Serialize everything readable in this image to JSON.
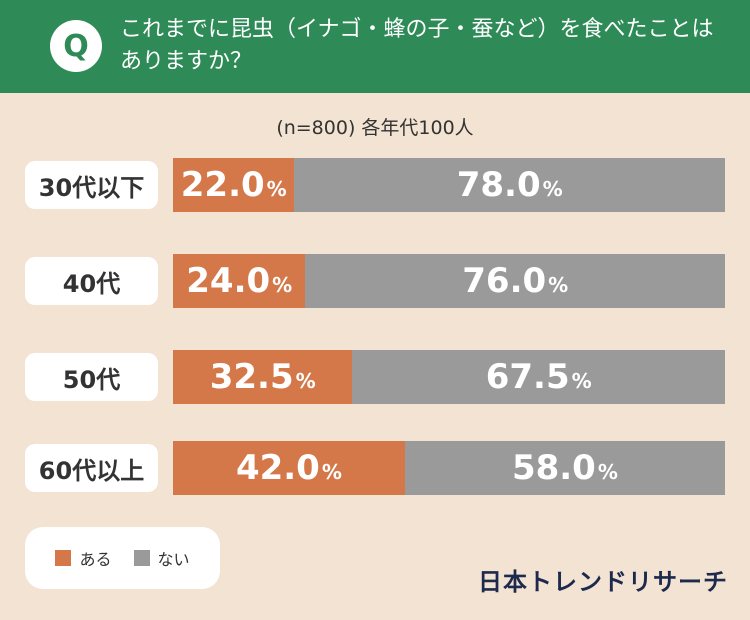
{
  "header": {
    "q_badge": "Q",
    "question": "これまでに昆虫（イナゴ・蜂の子・蚕など）を食べたことはありますか？"
  },
  "colors": {
    "header_bg": "#2e8b57",
    "yes": "#d4784a",
    "no": "#9a9a9a",
    "background": "#f3e3d2"
  },
  "chart_data": {
    "type": "bar",
    "orientation": "horizontal-stacked-100",
    "title": "これまでに昆虫（イナゴ・蜂の子・蚕など）を食べたことはありますか？",
    "subtitle": "(n=800) 各年代100人",
    "categories": [
      "30代以下",
      "40代",
      "50代",
      "60代以上"
    ],
    "series": [
      {
        "name": "ある",
        "values": [
          22.0,
          24.0,
          32.5,
          42.0
        ]
      },
      {
        "name": "ない",
        "values": [
          78.0,
          76.0,
          67.5,
          58.0
        ]
      }
    ],
    "unit": "%",
    "xlim": [
      0,
      100
    ],
    "legend": "bottom-left"
  },
  "legend": {
    "items": [
      {
        "label": "ある"
      },
      {
        "label": "ない"
      }
    ]
  },
  "brand": "日本トレンドリサーチ"
}
